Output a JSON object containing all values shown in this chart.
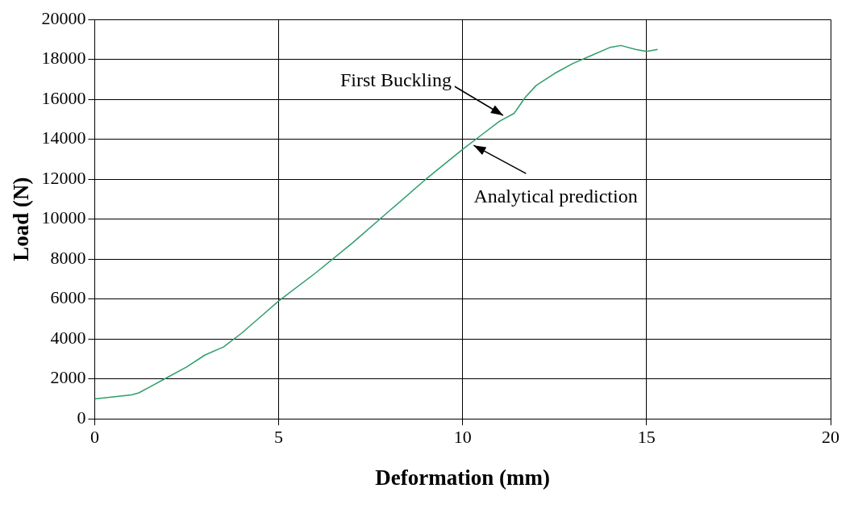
{
  "chart_data": {
    "type": "line",
    "xlabel": "Deformation (mm)",
    "ylabel": "Load (N)",
    "x": [
      0,
      0.5,
      1,
      1.2,
      1.5,
      2,
      2.5,
      3,
      3.5,
      4,
      4.5,
      5,
      6,
      7,
      8,
      9,
      10,
      10.5,
      11,
      11.4,
      11.7,
      12,
      12.5,
      13,
      13.5,
      14,
      14.3,
      14.7,
      15,
      15.3
    ],
    "series": [
      {
        "color": "#2e9e6a",
        "values": [
          1000,
          1100,
          1200,
          1300,
          1600,
          2100,
          2600,
          3200,
          3600,
          4300,
          5100,
          5900,
          7300,
          8800,
          10400,
          12000,
          13500,
          14200,
          14900,
          15300,
          16100,
          16700,
          17300,
          17800,
          18200,
          18600,
          18700,
          18500,
          18400,
          18500
        ]
      }
    ],
    "xlim": [
      0,
      20
    ],
    "xticks": [
      0,
      5,
      10,
      15,
      20
    ],
    "ylim": [
      0,
      20000
    ],
    "yticks": [
      0,
      2000,
      4000,
      6000,
      8000,
      10000,
      12000,
      14000,
      16000,
      18000,
      20000
    ],
    "annotations": [
      {
        "text": "First Buckling",
        "x": 11.1,
        "y": 15200
      },
      {
        "text": "Analytical prediction",
        "x": 10.3,
        "y": 13700
      }
    ],
    "grid": true,
    "legend": false,
    "marker": "none",
    "line_style": "solid"
  }
}
